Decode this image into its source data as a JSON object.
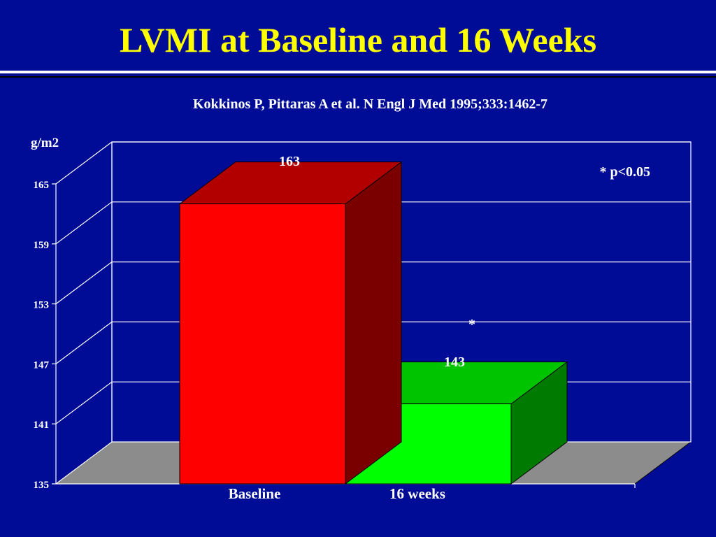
{
  "slide": {
    "title": "LVMI at Baseline and 16 Weeks",
    "citation": "Kokkinos P, Pittaras A et al.  N Engl J Med 1995;333:1462-7"
  },
  "colors": {
    "background": "#000c96",
    "title": "#ffff00",
    "text": "#ffffff",
    "floor": "#8c8c8c",
    "baseline_front": "#ff0000",
    "baseline_top": "#b20000",
    "baseline_side": "#7a0000",
    "weeks_front": "#00ff00",
    "weeks_top": "#00c400",
    "weeks_side": "#007a00"
  },
  "chart_data": {
    "type": "bar",
    "ylabel": "g/m2",
    "ylim": [
      135,
      165
    ],
    "yticks": [
      135,
      141,
      147,
      153,
      159,
      165
    ],
    "categories": [
      "Baseline",
      "16 weeks"
    ],
    "values": [
      163,
      143
    ],
    "data_labels": [
      "163",
      "143"
    ],
    "annotations": [
      {
        "text": "*",
        "target": "16 weeks"
      },
      {
        "text": "* p<0.05",
        "position": "top-right"
      }
    ],
    "grid": true,
    "style": "3d"
  }
}
